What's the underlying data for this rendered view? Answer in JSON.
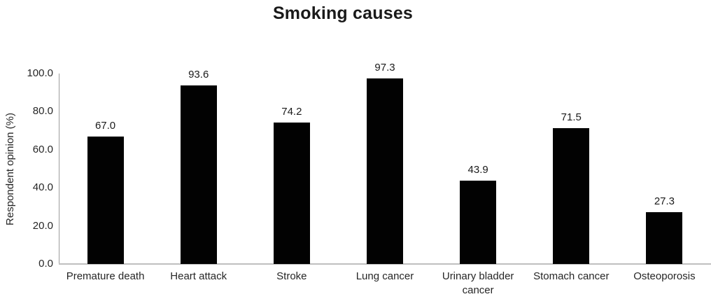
{
  "chart_data": {
    "type": "bar",
    "title": "Smoking causes",
    "categories": [
      "Premature death",
      "Heart attack",
      "Stroke",
      "Lung cancer",
      "Urinary bladder cancer",
      "Stomach cancer",
      "Osteoporosis"
    ],
    "values": [
      67.0,
      93.6,
      74.2,
      97.3,
      43.9,
      71.5,
      27.3
    ],
    "data_labels": [
      "67.0",
      "93.6",
      "74.2",
      "97.3",
      "43.9",
      "71.5",
      "27.3"
    ],
    "xlabel": "",
    "ylabel": "Respondent opinion (%)",
    "ylim": [
      0,
      100
    ],
    "ytick_step": 20,
    "ytick_labels": [
      "0.0",
      "20.0",
      "40.0",
      "60.0",
      "80.0",
      "100.0"
    ],
    "grid": false,
    "legend": "none",
    "bar_color": "#020202",
    "x_axis_color": "#bfbfbf",
    "y_axis_color": "#9d9d9d",
    "text_color": "#262626"
  }
}
